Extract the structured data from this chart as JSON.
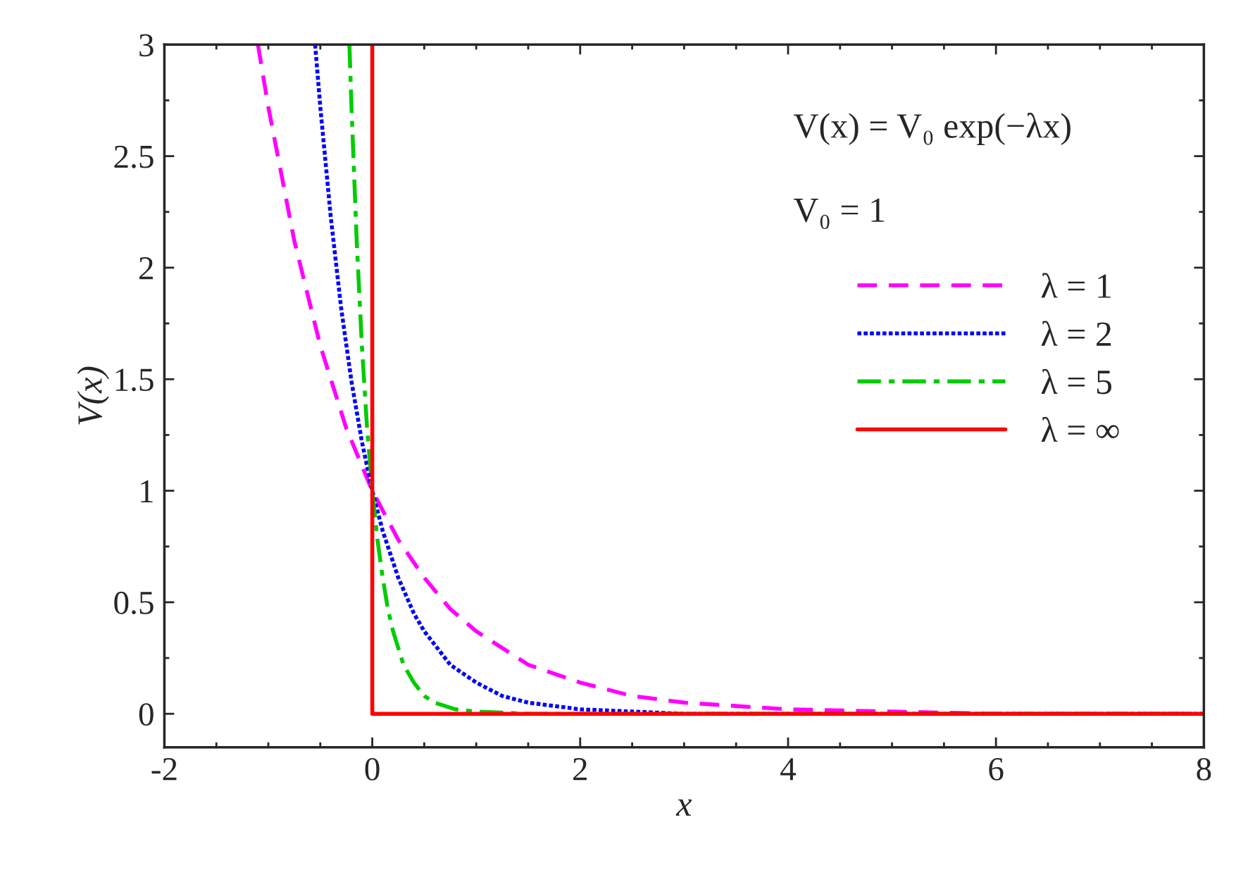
{
  "chart_data": {
    "type": "line",
    "xlabel": "x",
    "ylabel": "V(x)",
    "annotations": [
      "V(x) = V₀ exp(−λx)",
      "V₀ = 1"
    ],
    "series": [
      {
        "name": "λ = 1",
        "color": "#ff00ff",
        "line_style": "dashed",
        "x": [
          -1.1,
          -1,
          -0.75,
          -0.5,
          -0.25,
          0,
          0.25,
          0.5,
          0.75,
          1,
          1.5,
          2,
          2.5,
          3,
          4,
          5,
          6,
          7,
          8
        ],
        "values": [
          3,
          2.72,
          2.12,
          1.65,
          1.28,
          1,
          0.78,
          0.61,
          0.47,
          0.37,
          0.22,
          0.14,
          0.08,
          0.05,
          0.02,
          0.01,
          0,
          0,
          0
        ]
      },
      {
        "name": "λ = 2",
        "color": "#0000ff",
        "line_style": "dotted",
        "x": [
          -0.55,
          -0.5,
          -0.4,
          -0.3,
          -0.2,
          -0.1,
          0,
          0.1,
          0.25,
          0.4,
          0.5,
          0.75,
          1,
          1.25,
          1.5,
          2,
          2.5,
          3,
          8
        ],
        "values": [
          3,
          2.72,
          2.23,
          1.82,
          1.49,
          1.22,
          1,
          0.82,
          0.61,
          0.45,
          0.37,
          0.22,
          0.14,
          0.08,
          0.05,
          0.02,
          0.01,
          0,
          0
        ]
      },
      {
        "name": "λ = 5",
        "color": "#00cc00",
        "line_style": "dashdot",
        "x": [
          -0.22,
          -0.2,
          -0.15,
          -0.1,
          -0.05,
          0,
          0.05,
          0.1,
          0.15,
          0.2,
          0.3,
          0.4,
          0.5,
          0.6,
          0.8,
          1,
          1.5,
          8
        ],
        "values": [
          3,
          2.72,
          2.12,
          1.65,
          1.28,
          1,
          0.78,
          0.61,
          0.47,
          0.37,
          0.22,
          0.14,
          0.08,
          0.05,
          0.02,
          0.01,
          0,
          0
        ]
      },
      {
        "name": "λ = ∞",
        "color": "#ff0000",
        "line_style": "solid",
        "x": [
          0,
          0,
          8
        ],
        "values": [
          3,
          0,
          0
        ]
      }
    ],
    "xlim": [
      -2,
      8
    ],
    "xticks": [
      -2,
      0,
      2,
      4,
      6,
      8
    ],
    "ylim": [
      -0.15,
      3
    ],
    "yticks": [
      0,
      0.5,
      1,
      1.5,
      2,
      2.5,
      3
    ],
    "grid": false,
    "legend": "top right"
  }
}
